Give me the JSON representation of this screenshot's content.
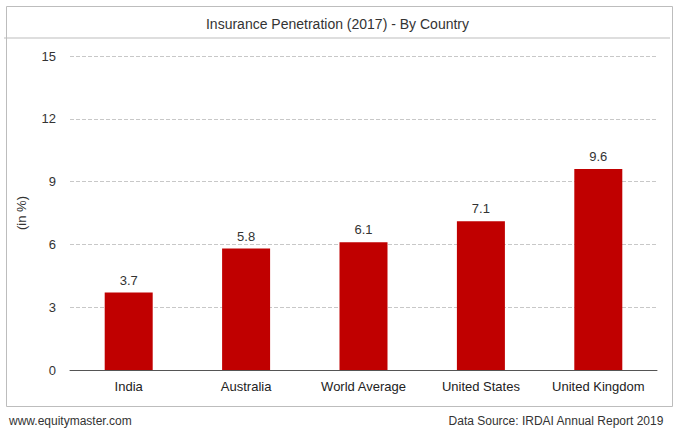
{
  "chart_data": {
    "type": "bar",
    "title": "Insurance Penetration (2017) - By Country",
    "y_label": "(in %)",
    "categories": [
      "India",
      "Australia",
      "World Average",
      "United States",
      "United Kingdom"
    ],
    "values": [
      3.7,
      5.8,
      6.1,
      7.1,
      9.6
    ],
    "color": "#c00000",
    "ylim": [
      0,
      15
    ],
    "yticks": [
      0,
      3,
      6,
      9,
      12,
      15
    ],
    "grid": true,
    "data_labels": true,
    "credit": "www.equitymaster.com",
    "source": "Data Source: IRDAI Annual Report 2019"
  }
}
